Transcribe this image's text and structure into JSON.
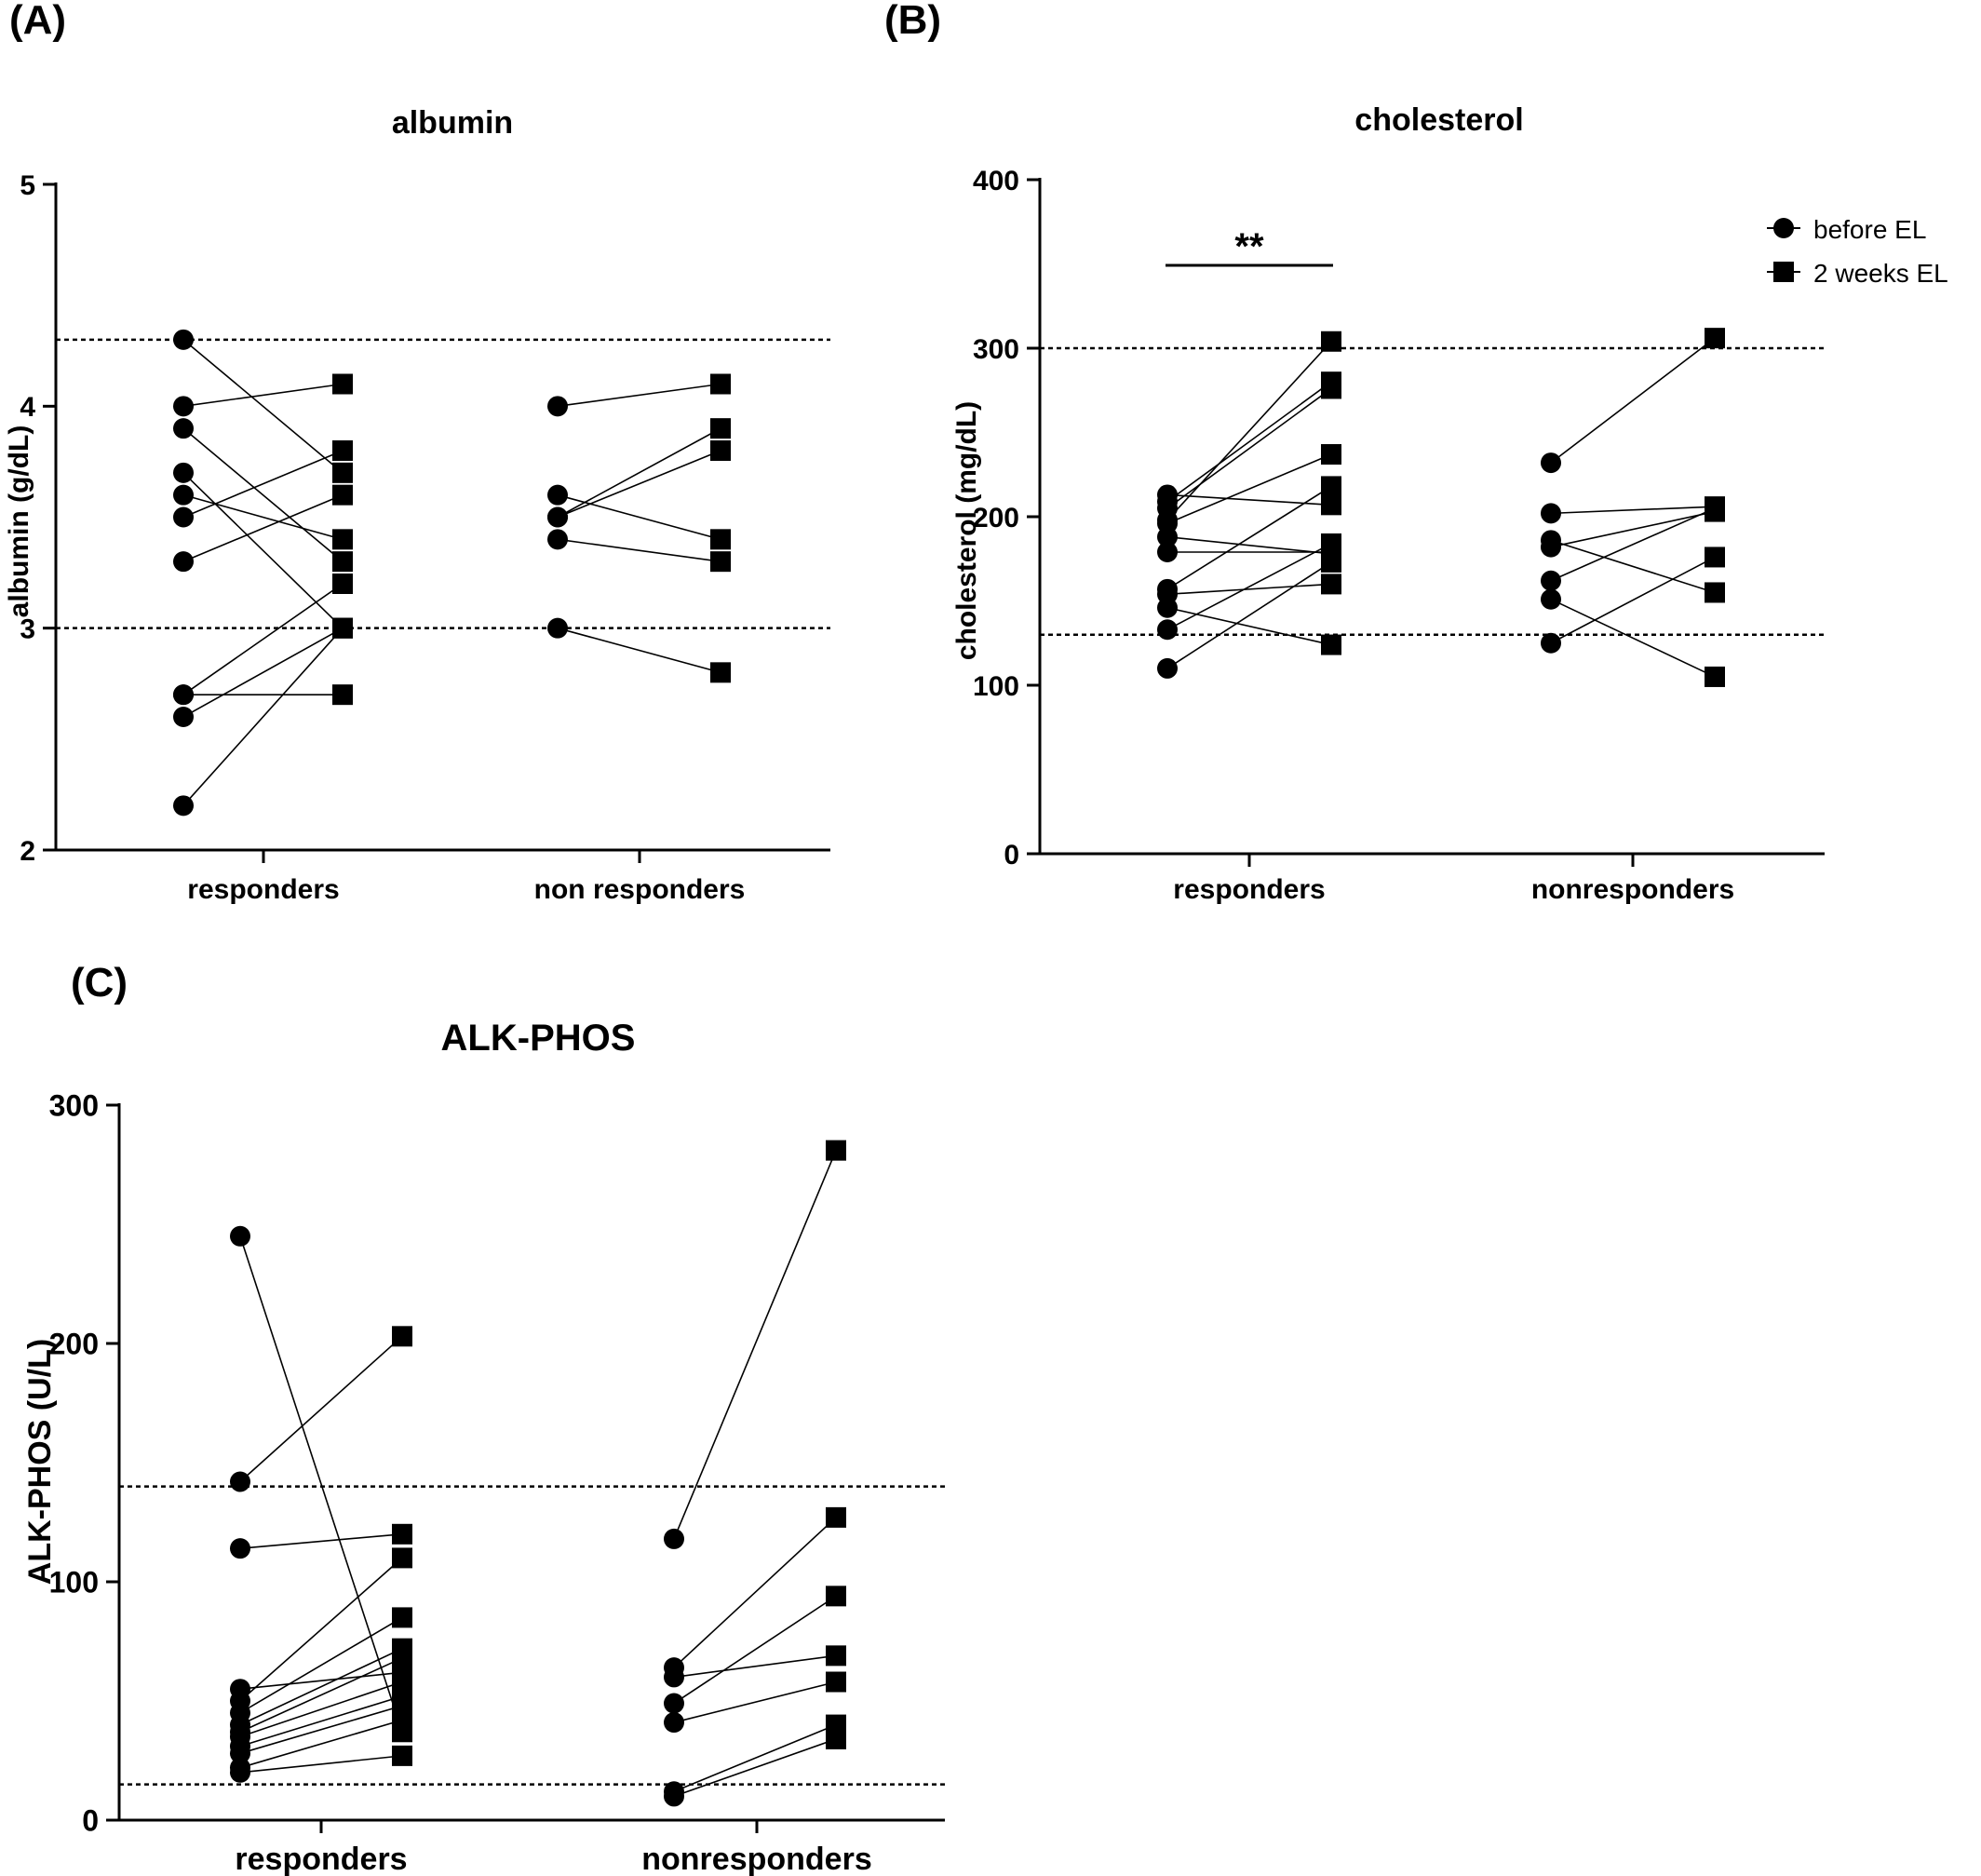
{
  "chart_data": [
    {
      "panel_label": "(A)",
      "type": "scatter",
      "title": "albumin",
      "ylabel": "albumin (g/dL)",
      "ylim": [
        2,
        5
      ],
      "yticks": [
        "2",
        "3",
        "4",
        "5"
      ],
      "categories": [
        "responders",
        "non responders"
      ],
      "reference_lines": [
        4.3,
        3.0
      ],
      "groups": [
        {
          "category": "responders",
          "pairs": [
            [
              4.3,
              3.7
            ],
            [
              4.0,
              4.1
            ],
            [
              3.9,
              3.3
            ],
            [
              3.7,
              3.0
            ],
            [
              3.6,
              3.4
            ],
            [
              3.5,
              3.8
            ],
            [
              3.3,
              3.6
            ],
            [
              2.7,
              3.2
            ],
            [
              2.7,
              2.7
            ],
            [
              2.6,
              3.0
            ],
            [
              2.2,
              3.0
            ]
          ]
        },
        {
          "category": "non responders",
          "pairs": [
            [
              4.0,
              4.1
            ],
            [
              3.6,
              3.4
            ],
            [
              3.5,
              3.9
            ],
            [
              3.5,
              3.8
            ],
            [
              3.4,
              3.3
            ],
            [
              3.0,
              2.8
            ]
          ]
        }
      ],
      "annotation": ""
    },
    {
      "panel_label": "(B)",
      "type": "scatter",
      "title": "cholesterol",
      "ylabel": "cholesterol (mg/dL)",
      "ylim": [
        0,
        400
      ],
      "yticks": [
        "0",
        "100",
        "200",
        "300",
        "400"
      ],
      "categories": [
        "responders",
        "nonresponders"
      ],
      "reference_lines": [
        300,
        130
      ],
      "groups": [
        {
          "category": "responders",
          "pairs": [
            [
              213,
              207
            ],
            [
              209,
              280
            ],
            [
              205,
              276
            ],
            [
              198,
              304
            ],
            [
              196,
              237
            ],
            [
              188,
              178
            ],
            [
              179,
              179
            ],
            [
              157,
              218
            ],
            [
              154,
              160
            ],
            [
              146,
              124
            ],
            [
              133,
              184
            ],
            [
              110,
              173
            ]
          ]
        },
        {
          "category": "nonresponders",
          "pairs": [
            [
              232,
              306
            ],
            [
              202,
              206
            ],
            [
              186,
              155
            ],
            [
              182,
              203
            ],
            [
              162,
              205
            ],
            [
              151,
              105
            ],
            [
              125,
              176
            ]
          ]
        }
      ],
      "annotation": "**",
      "legend": {
        "position": "top-right",
        "entries": [
          {
            "label": "before EL",
            "marker": "circle"
          },
          {
            "label": "2 weeks EL",
            "marker": "square"
          }
        ]
      }
    },
    {
      "panel_label": "(C)",
      "type": "scatter",
      "title": "ALK-PHOS",
      "ylabel": "ALK-PHOS (U/L)",
      "ylim": [
        0,
        300
      ],
      "yticks": [
        "0",
        "100",
        "200",
        "300"
      ],
      "categories": [
        "responders",
        "nonresponders"
      ],
      "reference_lines": [
        140,
        15
      ],
      "groups": [
        {
          "category": "responders",
          "pairs": [
            [
              245,
              37
            ],
            [
              142,
              203
            ],
            [
              114,
              120
            ],
            [
              55,
              62
            ],
            [
              50,
              110
            ],
            [
              45,
              85
            ],
            [
              40,
              72
            ],
            [
              37,
              68
            ],
            [
              35,
              58
            ],
            [
              31,
              52
            ],
            [
              28,
              48
            ],
            [
              22,
              42
            ],
            [
              20,
              27
            ]
          ]
        },
        {
          "category": "nonresponders",
          "pairs": [
            [
              118,
              281
            ],
            [
              64,
              127
            ],
            [
              60,
              69
            ],
            [
              49,
              94
            ],
            [
              41,
              58
            ],
            [
              12,
              40
            ],
            [
              10,
              34
            ]
          ]
        }
      ],
      "annotation": ""
    }
  ]
}
